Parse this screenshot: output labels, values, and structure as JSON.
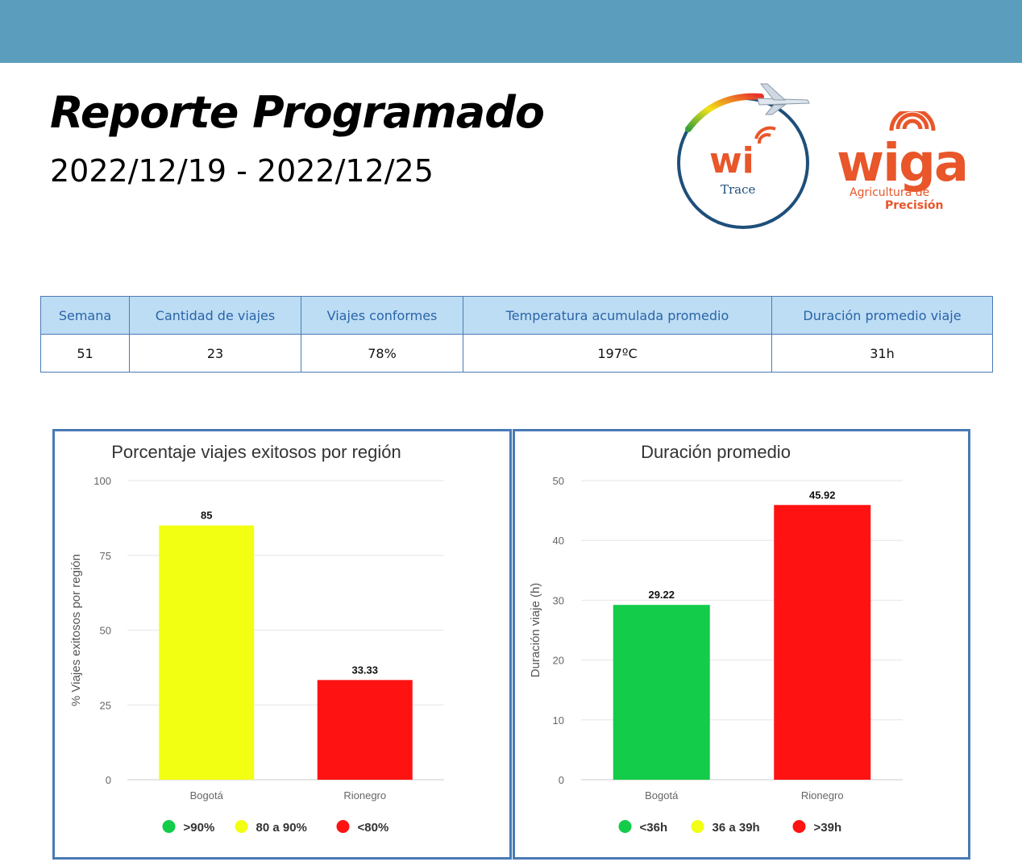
{
  "header": {
    "title": "Reporte Programado",
    "date_range": "2022/12/19 - 2022/12/25"
  },
  "logos": {
    "witrace_text": "wi",
    "witrace_sub": "Trace",
    "wiga_text": "wiga",
    "wiga_sub1": "Agricultura de",
    "wiga_sub2": "Precisión"
  },
  "summary_table": {
    "headers": [
      "Semana",
      "Cantidad de viajes",
      "Viajes conformes",
      "Temperatura acumulada promedio",
      "Duración promedio viaje"
    ],
    "row": [
      "51",
      "23",
      "78%",
      "197ºC",
      "31h"
    ]
  },
  "chart_data": [
    {
      "type": "bar",
      "title": "Porcentaje viajes exitosos por región",
      "xlabel": "",
      "ylabel": "% Viajes exitosos por región",
      "categories": [
        "Bogotá",
        "Rionegro"
      ],
      "values": [
        85,
        33.33
      ],
      "value_labels": [
        "85",
        "33.33"
      ],
      "bar_colors": [
        "#f2ff12",
        "#ff1212"
      ],
      "ylim": [
        0,
        100
      ],
      "yticks": [
        0,
        25,
        50,
        75,
        100
      ],
      "grid": true,
      "legend_position": "bottom",
      "legend": [
        {
          "label": ">90%",
          "color": "#12cc4a"
        },
        {
          "label": "80 a 90%",
          "color": "#f2ff12"
        },
        {
          "label": "<80%",
          "color": "#ff1212"
        }
      ]
    },
    {
      "type": "bar",
      "title": "Duración promedio",
      "xlabel": "",
      "ylabel": "Duración viaje (h)",
      "categories": [
        "Bogotá",
        "Rionegro"
      ],
      "values": [
        29.22,
        45.92
      ],
      "value_labels": [
        "29.22",
        "45.92"
      ],
      "bar_colors": [
        "#12cc4a",
        "#ff1212"
      ],
      "ylim": [
        0,
        50
      ],
      "yticks": [
        0,
        10,
        20,
        30,
        40,
        50
      ],
      "grid": true,
      "legend_position": "bottom",
      "legend": [
        {
          "label": "<36h",
          "color": "#12cc4a"
        },
        {
          "label": "36 a 39h",
          "color": "#f2ff12"
        },
        {
          "label": ">39h",
          "color": "#ff1212"
        }
      ]
    }
  ]
}
